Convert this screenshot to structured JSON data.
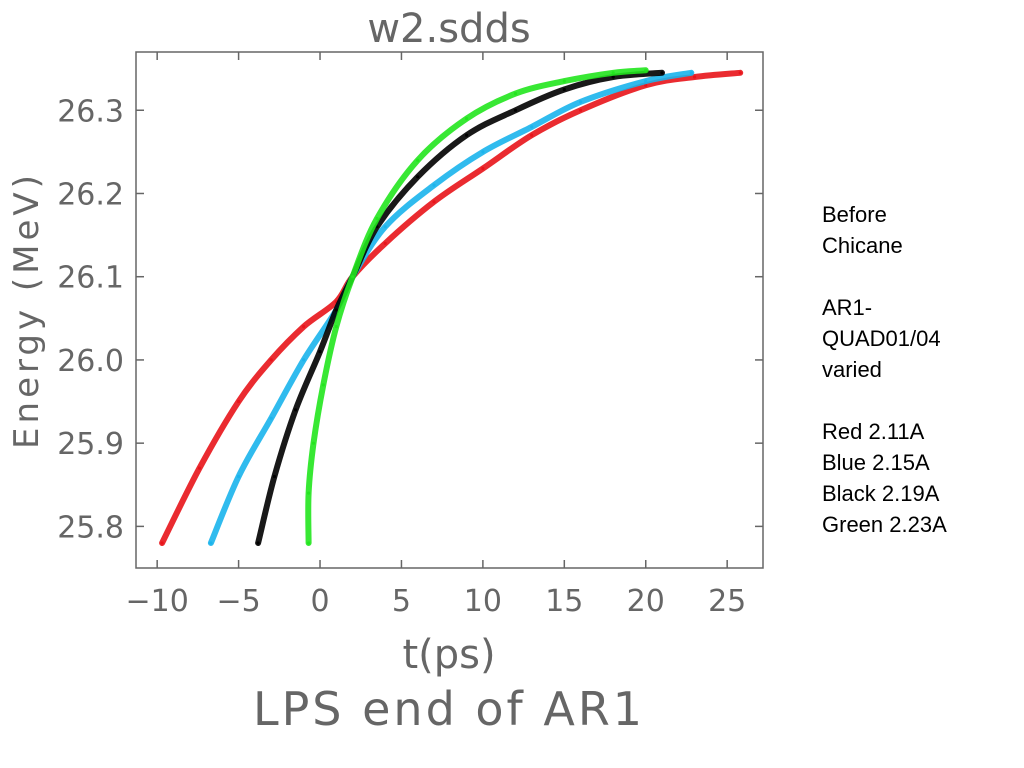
{
  "chart_data": {
    "type": "scatter",
    "title": "w2.sdds",
    "xlabel": "t(ps)",
    "ylabel": "Energy (MeV)",
    "footer": "LPS end of AR1",
    "xlim": [
      -11.3,
      27.2
    ],
    "ylim": [
      25.75,
      26.37
    ],
    "xticks": [
      -10,
      -5,
      0,
      5,
      10,
      15,
      20,
      25
    ],
    "xtick_labels": [
      "−10",
      "−5",
      "0",
      "5",
      "10",
      "15",
      "20",
      "25"
    ],
    "yticks": [
      25.8,
      25.9,
      26.0,
      26.1,
      26.2,
      26.3
    ],
    "ytick_labels": [
      "25.8",
      "25.9",
      "26.0",
      "26.1",
      "26.2",
      "26.3"
    ],
    "grid": false,
    "series": [
      {
        "name": "Red 2.11A",
        "color": "#e8141a",
        "points": [
          [
            -9.7,
            25.78
          ],
          [
            -7.4,
            25.87
          ],
          [
            -5.0,
            25.95
          ],
          [
            -3.0,
            26.0
          ],
          [
            -1.0,
            26.04
          ],
          [
            1.0,
            26.07
          ],
          [
            2.0,
            26.1
          ],
          [
            4.0,
            26.14
          ],
          [
            7.0,
            26.19
          ],
          [
            10.0,
            26.23
          ],
          [
            13.0,
            26.27
          ],
          [
            16.0,
            26.3
          ],
          [
            20.0,
            26.33
          ],
          [
            23.0,
            26.34
          ],
          [
            25.8,
            26.345
          ]
        ]
      },
      {
        "name": "Blue 2.15A",
        "color": "#1ab4ec",
        "points": [
          [
            -6.7,
            25.78
          ],
          [
            -5.0,
            25.86
          ],
          [
            -3.0,
            25.93
          ],
          [
            -1.0,
            26.0
          ],
          [
            1.0,
            26.06
          ],
          [
            2.0,
            26.1
          ],
          [
            4.0,
            26.16
          ],
          [
            7.0,
            26.21
          ],
          [
            10.0,
            26.25
          ],
          [
            13.0,
            26.28
          ],
          [
            16.0,
            26.31
          ],
          [
            20.0,
            26.335
          ],
          [
            22.8,
            26.345
          ]
        ]
      },
      {
        "name": "Black 2.19A",
        "color": "#000000",
        "points": [
          [
            -3.8,
            25.78
          ],
          [
            -2.8,
            25.86
          ],
          [
            -1.5,
            25.94
          ],
          [
            0.0,
            26.01
          ],
          [
            1.0,
            26.06
          ],
          [
            2.0,
            26.1
          ],
          [
            3.5,
            26.16
          ],
          [
            6.0,
            26.22
          ],
          [
            9.0,
            26.27
          ],
          [
            12.0,
            26.3
          ],
          [
            15.0,
            26.325
          ],
          [
            18.0,
            26.34
          ],
          [
            21.0,
            26.345
          ]
        ]
      },
      {
        "name": "Green 2.23A",
        "color": "#22e61e",
        "points": [
          [
            -0.7,
            25.78
          ],
          [
            -0.7,
            25.84
          ],
          [
            -0.4,
            25.9
          ],
          [
            0.2,
            25.97
          ],
          [
            1.0,
            26.04
          ],
          [
            2.0,
            26.1
          ],
          [
            3.5,
            26.17
          ],
          [
            6.0,
            26.24
          ],
          [
            9.0,
            26.29
          ],
          [
            12.0,
            26.32
          ],
          [
            15.0,
            26.335
          ],
          [
            18.0,
            26.345
          ],
          [
            20.0,
            26.348
          ]
        ]
      }
    ]
  },
  "note": {
    "block1": [
      "Before",
      "Chicane"
    ],
    "block2": [
      "AR1-",
      "QUAD01/04",
      "varied"
    ],
    "block3": [
      "Red 2.11A",
      "Blue 2.15A",
      "Black 2.19A",
      "Green 2.23A"
    ]
  }
}
